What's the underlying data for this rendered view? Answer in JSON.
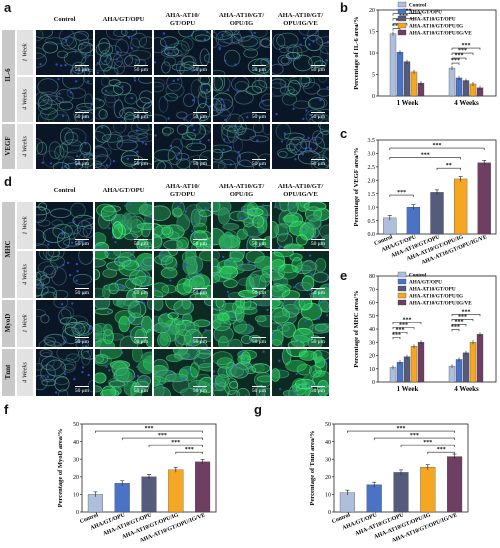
{
  "panels": {
    "a": "a",
    "b": "b",
    "c": "c",
    "d": "d",
    "e": "e",
    "f": "f",
    "g": "g"
  },
  "groups": [
    "Control",
    "AHA/GT/OPU",
    "AHA-AT10/GT/OPU",
    "AHA-AT10/GT/OPU/IG",
    "AHA-AT10/GT/OPU/IG/VE"
  ],
  "group_headers": [
    "Control",
    "AHA/GT/OPU",
    "AHA-AT10/\nGT/OPU",
    "AHA-AT10/GT/\nOPU/IG",
    "AHA-AT10/GT/\nOPU/IG/VE"
  ],
  "scale_bar": "50 μm",
  "colors": {
    "control": "#aebfdc",
    "aha": "#4a73c5",
    "at10": "#545b7b",
    "ig": "#f5a623",
    "ve": "#6e3f63"
  },
  "rows_a": [
    {
      "group": "IL-6",
      "time": "1 Week"
    },
    {
      "group": "IL-6",
      "time": "4 Weeks"
    },
    {
      "group": "VEGF",
      "time": "4 Weeks"
    }
  ],
  "rows_d": [
    {
      "group": "MHC",
      "time": "1 Week"
    },
    {
      "group": "MHC",
      "time": "4 Weeks"
    },
    {
      "group": "MyoD",
      "time": "1 Week"
    },
    {
      "group": "Tnnt",
      "time": "4 Weeks"
    }
  ],
  "chart_data": [
    {
      "id": "b",
      "type": "bar",
      "ylabel": "Percentage of IL-6 area/%",
      "categories": [
        "1 Week",
        "4 Weeks"
      ],
      "ylim": [
        0,
        20
      ],
      "yticks": [
        0,
        5,
        10,
        15,
        20
      ],
      "legend": [
        "Control",
        "AHA/GT/OPU",
        "AHA-AT10/GT/OPU",
        "AHA-AT10/GT/OPU/IG",
        "AHA-AT10/GT/OPU/IG/VE"
      ],
      "series": [
        {
          "name": "Control",
          "values": [
            14.5,
            6.5
          ]
        },
        {
          "name": "AHA/GT/OPU",
          "values": [
            10.2,
            4.2
          ]
        },
        {
          "name": "AHA-AT10/GT/OPU",
          "values": [
            8.0,
            3.6
          ]
        },
        {
          "name": "AHA-AT10/GT/OPU/IG",
          "values": [
            5.6,
            2.8
          ]
        },
        {
          "name": "AHA-AT10/GT/OPU/IG/VE",
          "values": [
            3.0,
            1.9
          ]
        }
      ],
      "significance": "***"
    },
    {
      "id": "c",
      "type": "bar",
      "ylabel": "Percentage of VEGF area/%",
      "categories": [
        "Control",
        "AHA/GT/OPU",
        "AHA-AT10/GT/OPU",
        "AHA-AT10/GT/OPU/IG",
        "AHA-AT10/GT/OPU/IG/VE"
      ],
      "values": [
        0.6,
        1.0,
        1.55,
        2.05,
        2.65
      ],
      "ylim": [
        0,
        3.5
      ],
      "yticks": [
        0.0,
        0.5,
        1.0,
        1.5,
        2.0,
        2.5,
        3.0,
        3.5
      ],
      "significance": [
        "***",
        "**",
        "***",
        "***"
      ]
    },
    {
      "id": "e",
      "type": "bar",
      "ylabel": "Percentage of MHC area/%",
      "categories": [
        "1 Week",
        "4 Weeks"
      ],
      "ylim": [
        0,
        80
      ],
      "yticks": [
        0,
        10,
        20,
        30,
        40,
        50,
        60,
        70,
        80
      ],
      "legend": [
        "Control",
        "AHA/GT/OPU",
        "AHA-AT10/GT/OPU",
        "AHA-AT10/GT/OPU/IG",
        "AHA-AT10/GT/OPU/IG/VE"
      ],
      "series": [
        {
          "name": "Control",
          "values": [
            11,
            12
          ]
        },
        {
          "name": "AHA/GT/OPU",
          "values": [
            15,
            17
          ]
        },
        {
          "name": "AHA-AT10/GT/OPU",
          "values": [
            19,
            22
          ]
        },
        {
          "name": "AHA-AT10/GT/OPU/IG",
          "values": [
            27,
            30
          ]
        },
        {
          "name": "AHA-AT10/GT/OPU/IG/VE",
          "values": [
            30,
            36
          ]
        }
      ],
      "significance": "***"
    },
    {
      "id": "f",
      "type": "bar",
      "ylabel": "Percentage of MyoD area/%",
      "categories": [
        "Control",
        "AHA/GT/OPU",
        "AHA-AT10/GT/OPU",
        "AHA-AT10/GT/OPU/IG",
        "AHA-AT10/GT/OPU/IG/VE"
      ],
      "values": [
        10,
        16.3,
        20,
        24,
        28.5
      ],
      "ylim": [
        0,
        50
      ],
      "yticks": [
        0,
        10,
        20,
        30,
        40,
        50
      ],
      "significance": [
        "***",
        "***",
        "***",
        "***"
      ]
    },
    {
      "id": "g",
      "type": "bar",
      "ylabel": "Percentage of Tnnt area/%",
      "categories": [
        "Control",
        "AHA/GT/OPU",
        "AHA-AT10/GT/OPU",
        "AHA-AT10/GT/OPU/IG",
        "AHA-AT10/GT/OPU/IG/VE"
      ],
      "values": [
        11,
        15.5,
        22.5,
        25.5,
        31.5
      ],
      "ylim": [
        0,
        50
      ],
      "yticks": [
        0,
        10,
        20,
        30,
        40,
        50
      ],
      "significance": [
        "***",
        "***",
        "***",
        "***"
      ]
    }
  ]
}
